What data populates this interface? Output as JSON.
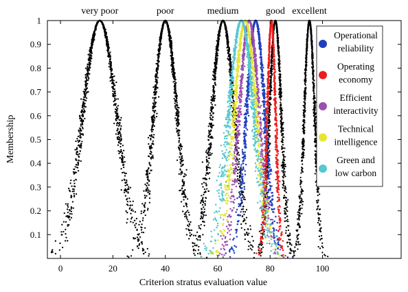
{
  "chart_data": {
    "type": "scatter",
    "title": "",
    "xlabel": "Criterion stratus evaluation value",
    "ylabel": "Membership",
    "xlim": [
      -5,
      130
    ],
    "ylim": [
      0,
      1
    ],
    "xticks": [
      0,
      20,
      40,
      60,
      80,
      100
    ],
    "yticks": [
      0.1,
      0.2,
      0.3,
      0.4,
      0.5,
      0.6,
      0.7,
      0.8,
      0.9,
      1
    ],
    "grid": false,
    "legend_position": "right",
    "category_labels": [
      {
        "text": "very poor",
        "x": 15
      },
      {
        "text": "poor",
        "x": 40
      },
      {
        "text": "medium",
        "x": 62
      },
      {
        "text": "good",
        "x": 82
      },
      {
        "text": "excellent",
        "x": 95
      }
    ],
    "grade_clouds": [
      {
        "label": "very poor",
        "ex": 15,
        "en": 6.5,
        "he": 0.5,
        "color": "#000000"
      },
      {
        "label": "poor",
        "ex": 40,
        "en": 4.5,
        "he": 0.4,
        "color": "#000000"
      },
      {
        "label": "medium",
        "ex": 62,
        "en": 4.3,
        "he": 0.4,
        "color": "#000000"
      },
      {
        "label": "good",
        "ex": 82,
        "en": 2.3,
        "he": 0.25,
        "color": "#000000"
      },
      {
        "label": "excellent",
        "ex": 95,
        "en": 2.0,
        "he": 0.2,
        "color": "#000000"
      }
    ],
    "series": [
      {
        "name": "Operational reliability",
        "color": "#1f3fbf",
        "ex": 74.5,
        "en": 3.5,
        "he": 0.35
      },
      {
        "name": "Operating economy",
        "color": "#ee1c1c",
        "ex": 80.5,
        "en": 1.6,
        "he": 0.2
      },
      {
        "name": "Efficient interactivity",
        "color": "#9b4fb0",
        "ex": 72.0,
        "en": 3.8,
        "he": 0.4
      },
      {
        "name": "Technical intelligence",
        "color": "#e6e632",
        "ex": 70.5,
        "en": 4.2,
        "he": 0.45
      },
      {
        "name": "Green and low carbon",
        "color": "#55c8d0",
        "ex": 69.0,
        "en": 4.8,
        "he": 0.5
      }
    ],
    "legend_entries": [
      {
        "line1": "Operational",
        "line2": "reliability",
        "color": "#1f3fbf"
      },
      {
        "line1": "Operating",
        "line2": "economy",
        "color": "#ee1c1c"
      },
      {
        "line1": "Efficient",
        "line2": "interactivity",
        "color": "#9b4fb0"
      },
      {
        "line1": "Technical",
        "line2": "intelligence",
        "color": "#e6e632"
      },
      {
        "line1": "Green and",
        "line2": "low carbon",
        "color": "#55c8d0"
      }
    ]
  }
}
